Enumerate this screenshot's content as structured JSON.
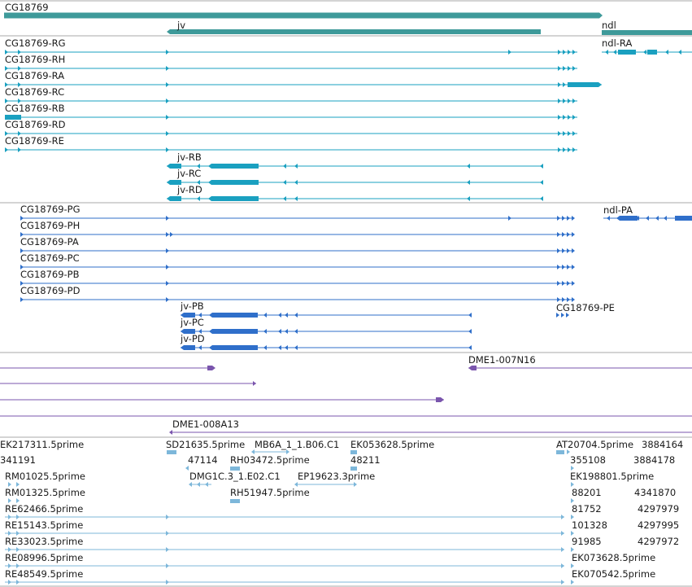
{
  "colors": {
    "gene": "#3e9a9a",
    "transcript_a": "#1aa0c0",
    "transcript_b": "#2f6fca",
    "clone": "#7a55ad",
    "est": "#7db7da",
    "divider": "#aaaaaa",
    "label": "#1a1a1a"
  },
  "gene_track": {
    "labels": [
      "CG18769",
      "jv",
      "ndl"
    ]
  },
  "transcripts_r": {
    "labels": [
      "CG18769-RG",
      "CG18769-RH",
      "CG18769-RA",
      "CG18769-RC",
      "CG18769-RB",
      "CG18769-RD",
      "CG18769-RE",
      "jv-RB",
      "jv-RC",
      "jv-RD",
      "ndl-RA"
    ]
  },
  "proteins_p": {
    "labels": [
      "CG18769-PG",
      "CG18769-PH",
      "CG18769-PA",
      "CG18769-PC",
      "CG18769-PB",
      "CG18769-PD",
      "jv-PB",
      "jv-PC",
      "jv-PD",
      "ndl-PA",
      "CG18769-PE"
    ]
  },
  "clones": {
    "labels": [
      "DME1-007N16",
      "DME1-008A13"
    ]
  },
  "ests": {
    "labels": [
      "EK217311.5prime",
      "SD21635.5prime",
      "MB6A_1_1.B06.C1",
      "EK053628.5prime",
      "AT20704.5prime",
      "3884164",
      "341191",
      "47114",
      "RH03472.5prime",
      "48211",
      "355108",
      "3884178",
      "RM01025.5prime",
      "DMG1C.3_1.E02.C1",
      "EP19623.3prime",
      "EK198801.5prime",
      "RM01325.5prime",
      "RH51947.5prime",
      "88201",
      "4341870",
      "RE62466.5prime",
      "81752",
      "4297979",
      "RE15143.5prime",
      "101328",
      "4297995",
      "RE33023.5prime",
      "91985",
      "4297972",
      "RE08996.5prime",
      "EK073628.5prime",
      "RE48549.5prime",
      "EK070542.5prime"
    ]
  }
}
